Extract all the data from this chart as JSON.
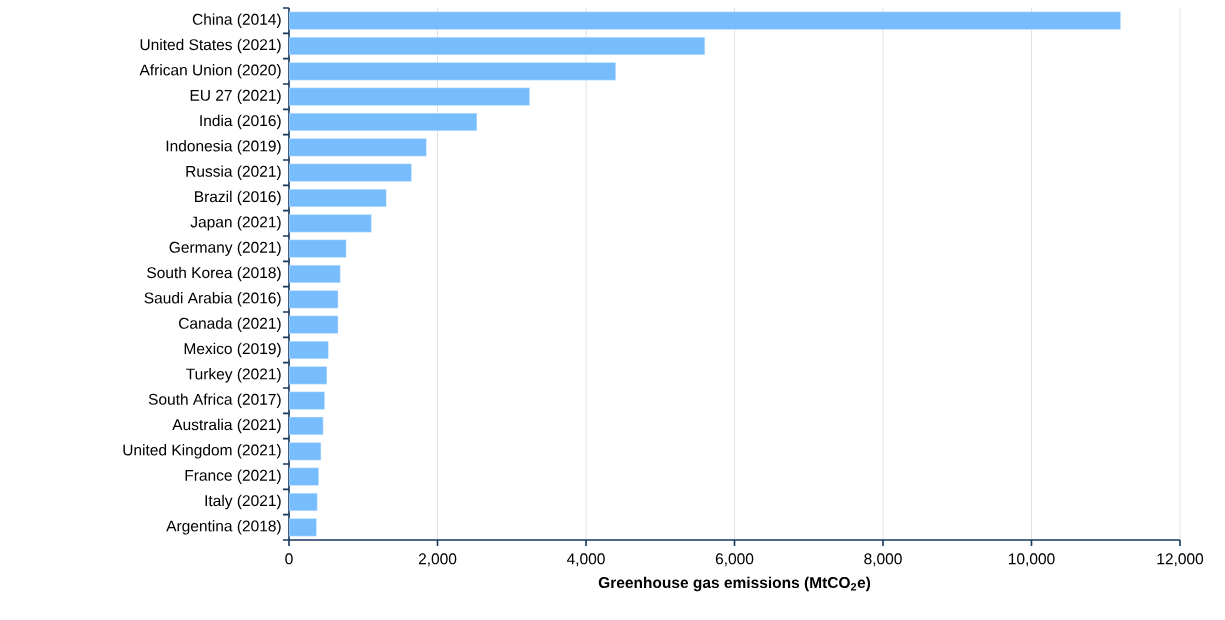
{
  "chart_data": {
    "type": "bar",
    "orientation": "horizontal",
    "xlabel": "Greenhouse gas emissions (MtCO$_{2}$e)",
    "categories": [
      "China (2014)",
      "United States (2021)",
      "African Union (2020)",
      "EU 27 (2021)",
      "India (2016)",
      "Indonesia (2019)",
      "Russia (2021)",
      "Brazil (2016)",
      "Japan (2021)",
      "Germany (2021)",
      "South Korea (2018)",
      "Saudi Arabia (2016)",
      "Canada (2021)",
      "Mexico (2019)",
      "Turkey (2021)",
      "South Africa (2017)",
      "Australia (2021)",
      "United Kingdom (2021)",
      "France (2021)",
      "Italy (2021)",
      "Argentina (2018)"
    ],
    "values": [
      11200,
      5600,
      4400,
      3240,
      2530,
      1850,
      1650,
      1310,
      1110,
      770,
      690,
      660,
      660,
      530,
      510,
      480,
      460,
      430,
      400,
      380,
      370
    ],
    "color": "#77bdfd",
    "xlim": [
      0,
      12000
    ],
    "xticks": [
      {
        "value": 0,
        "label": "0"
      },
      {
        "value": 2000,
        "label": "2,000"
      },
      {
        "value": 4000,
        "label": "4,000"
      },
      {
        "value": 6000,
        "label": "6,000"
      },
      {
        "value": 8000,
        "label": "8,000"
      },
      {
        "value": 10000,
        "label": "10,000"
      },
      {
        "value": 12000,
        "label": "12,000"
      }
    ],
    "grid": "x"
  }
}
